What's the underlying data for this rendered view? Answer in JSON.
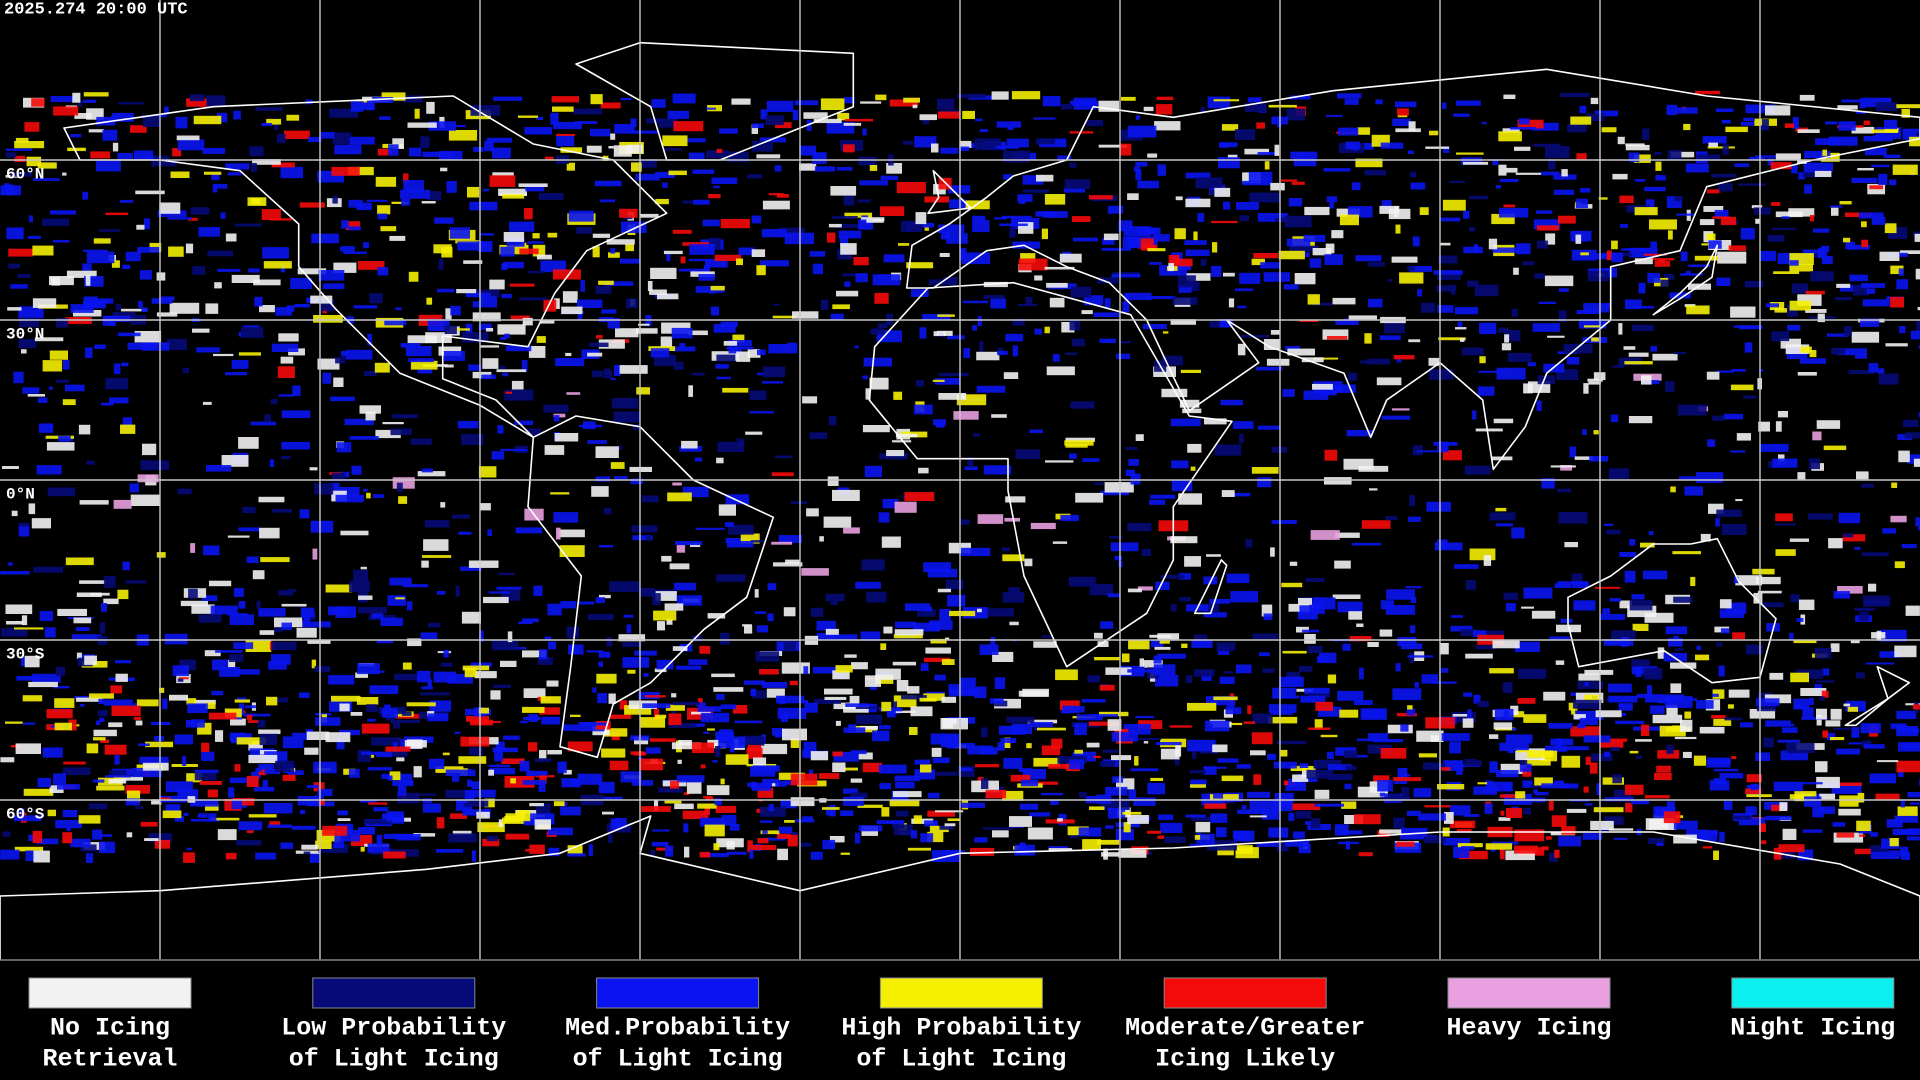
{
  "header": {
    "timestamp": "2025.274 20:00 UTC"
  },
  "map": {
    "latitude_labels": [
      "60°N",
      "30°N",
      "0°N",
      "30°S",
      "60°S"
    ]
  },
  "legend": [
    {
      "color": "#f2f2f2",
      "label": [
        "No Icing",
        "Retrieval"
      ]
    },
    {
      "color": "#050a78",
      "label": [
        "Low Probability",
        "of Light Icing"
      ]
    },
    {
      "color": "#0a14f0",
      "label": [
        "Med.Probability",
        "of Light Icing"
      ]
    },
    {
      "color": "#f5f000",
      "label": [
        "High Probability",
        "of Light Icing"
      ]
    },
    {
      "color": "#f50a0a",
      "label": [
        "Moderate/Greater",
        "Icing Likely"
      ]
    },
    {
      "color": "#e8a0e0",
      "label": [
        "Heavy Icing"
      ]
    },
    {
      "color": "#0af0f0",
      "label": [
        "Night Icing"
      ]
    }
  ]
}
